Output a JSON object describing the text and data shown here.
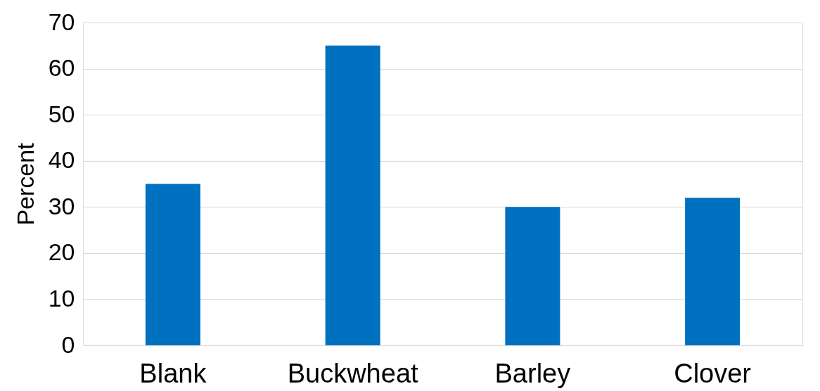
{
  "chart_data": {
    "type": "bar",
    "ylabel": "Percent",
    "categories": [
      "Blank",
      "Buckwheat",
      "Barley",
      "Clover"
    ],
    "values": [
      35,
      65,
      30,
      32
    ],
    "color": "#0070c0",
    "ylim": [
      0,
      70
    ],
    "yticks": [
      0,
      10,
      20,
      30,
      40,
      50,
      60,
      70
    ],
    "grid": "y"
  }
}
